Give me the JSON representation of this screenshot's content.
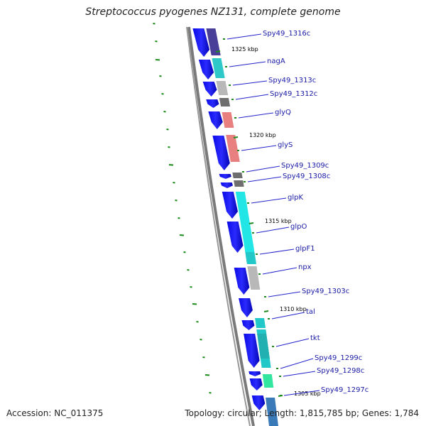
{
  "title": "Streptococcus pyogenes NZ131, complete genome",
  "footer": {
    "accession": "Accession: NC_011375",
    "summary": "Topology: circular; Length: 1,815,785 bp; Genes: 1,784"
  },
  "colors": {
    "backbone": "#8c8c8c",
    "forward_strand": "#0a0ae6",
    "label": "#1a1aa6",
    "tick": "#1f8a1f",
    "gc_ticks": "#1a8a1a"
  },
  "kbp_ticks": [
    {
      "label": "1325 kbp"
    },
    {
      "label": "1320 kbp"
    },
    {
      "label": "1315 kbp"
    },
    {
      "label": "1310 kbp"
    },
    {
      "label": "1305 kbp"
    }
  ],
  "genes": [
    {
      "name": "Spy49_1316c",
      "color": "#4a3f98"
    },
    {
      "name": "nagA",
      "color": "#2ec8c8"
    },
    {
      "name": "Spy49_1313c",
      "color": "#b8b8b8"
    },
    {
      "name": "Spy49_1312c",
      "color": "#6e6e6e"
    },
    {
      "name": "glyQ",
      "color": "#e88080"
    },
    {
      "name": "glyS",
      "color": "#e88080"
    },
    {
      "name": "Spy49_1309c",
      "color": "#6e6e6e"
    },
    {
      "name": "Spy49_1308c",
      "color": "#6e6e6e"
    },
    {
      "name": "glpK",
      "color": "#22e6e6"
    },
    {
      "name": "glpO",
      "color": "#22e6e6"
    },
    {
      "name": "glpF1",
      "color": "#22c8c8"
    },
    {
      "name": "npx",
      "color": "#b8b8b8"
    },
    {
      "name": "Spy49_1303c",
      "color": "#22c8c8"
    },
    {
      "name": "tal",
      "color": "#22c8c8"
    },
    {
      "name": "tkt",
      "color": "#22c8c8"
    },
    {
      "name": "Spy49_1299c",
      "color": "#22b0b0"
    },
    {
      "name": "Spy49_1298c",
      "color": "#33e6a0"
    },
    {
      "name": "Spy49_1297c",
      "color": "#3a7ab8"
    }
  ]
}
